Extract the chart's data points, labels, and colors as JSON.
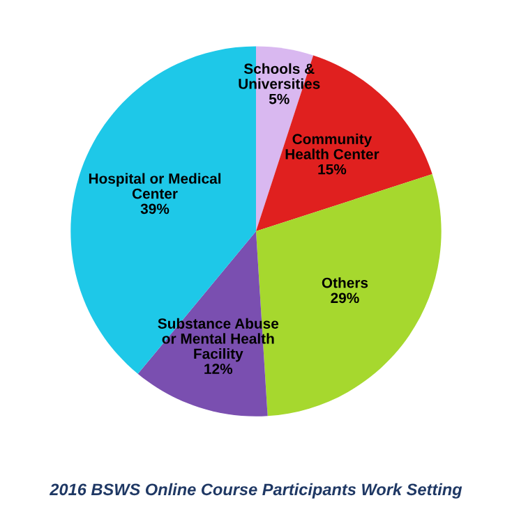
{
  "chart_data": {
    "type": "pie",
    "title": "2016 BSWS Online Course Participants Work Setting",
    "categories": [
      "Schools &\nUniversities",
      "Community\nHealth Center",
      "Others",
      "Substance Abuse\nor Mental Health\nFacility",
      "Hospital or Medical\nCenter"
    ],
    "values": [
      5,
      15,
      29,
      12,
      39
    ],
    "value_labels": [
      "5%",
      "15%",
      "29%",
      "12%",
      "39%"
    ],
    "colors": [
      "#d9b8f0",
      "#e0201f",
      "#a6d82e",
      "#7a4fb0",
      "#1ec8e8"
    ],
    "legend": false
  }
}
